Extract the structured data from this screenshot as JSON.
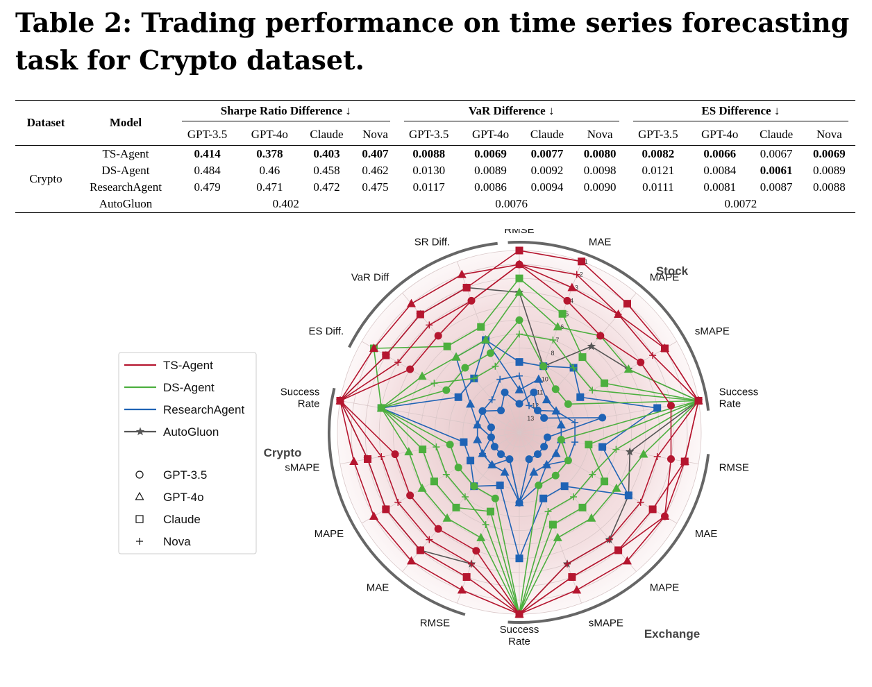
{
  "title": "Table 2: Trading performance on time series forecasting task for Crypto dataset.",
  "table": {
    "col_dataset": "Dataset",
    "col_model": "Model",
    "groups": [
      "Sharpe Ratio Difference ↓",
      "VaR Difference ↓",
      "ES Difference ↓"
    ],
    "llms": [
      "GPT-3.5",
      "GPT-4o",
      "Claude",
      "Nova"
    ],
    "dataset": "Crypto",
    "rows": [
      {
        "model": "TS-Agent",
        "values": [
          "0.414",
          "0.378",
          "0.403",
          "0.407",
          "0.0088",
          "0.0069",
          "0.0077",
          "0.0080",
          "0.0082",
          "0.0066",
          "0.0067",
          "0.0069"
        ],
        "bold": [
          true,
          true,
          true,
          true,
          true,
          true,
          true,
          true,
          true,
          true,
          false,
          true
        ]
      },
      {
        "model": "DS-Agent",
        "values": [
          "0.484",
          "0.46",
          "0.458",
          "0.462",
          "0.0130",
          "0.0089",
          "0.0092",
          "0.0098",
          "0.0121",
          "0.0084",
          "0.0061",
          "0.0089"
        ],
        "bold": [
          false,
          false,
          false,
          false,
          false,
          false,
          false,
          false,
          false,
          false,
          true,
          false
        ]
      },
      {
        "model": "ResearchAgent",
        "values": [
          "0.479",
          "0.471",
          "0.472",
          "0.475",
          "0.0117",
          "0.0086",
          "0.0094",
          "0.0090",
          "0.0111",
          "0.0081",
          "0.0087",
          "0.0088"
        ],
        "bold": [
          false,
          false,
          false,
          false,
          false,
          false,
          false,
          false,
          false,
          false,
          false,
          false
        ]
      }
    ],
    "autogluon": {
      "model": "AutoGluon",
      "values": [
        "0.402",
        "0.0076",
        "0.0072"
      ]
    }
  },
  "chart_data": {
    "type": "radar",
    "axes": [
      "RMSE",
      "MAE",
      "MAPE",
      "sMAPE",
      "Success Rate",
      "RMSE",
      "MAE",
      "MAPE",
      "sMAPE",
      "Success Rate",
      "RMSE",
      "MAE",
      "MAPE",
      "sMAPE",
      "Success Rate",
      "ES Diff.",
      "VaR Diff",
      "SR Diff."
    ],
    "axis_labels": [
      [
        "RMSE"
      ],
      [
        "MAE"
      ],
      [
        "MAPE"
      ],
      [
        "sMAPE"
      ],
      [
        "Success",
        "Rate"
      ],
      [
        "RMSE"
      ],
      [
        "MAE"
      ],
      [
        "MAPE"
      ],
      [
        "sMAPE"
      ],
      [
        "Success",
        "Rate"
      ],
      [
        "RMSE"
      ],
      [
        "MAE"
      ],
      [
        "MAPE"
      ],
      [
        "sMAPE"
      ],
      [
        "Success",
        "Rate"
      ],
      [
        "ES Diff."
      ],
      [
        "VaR Diff"
      ],
      [
        "SR Diff."
      ]
    ],
    "group_labels": [
      "Stock",
      "Exchange",
      "Crypto"
    ],
    "rank_ticks": [
      "1",
      "2",
      "3",
      "4",
      "5",
      "6",
      "7",
      "8",
      "9",
      "10",
      "11",
      "12",
      "13"
    ],
    "rank_range": [
      1,
      13
    ],
    "series": [
      {
        "name": "TS-Agent",
        "color": "#b5162f",
        "variants": [
          {
            "llm": "GPT-3.5",
            "ranks": [
              2,
              4,
              5,
              4,
              3,
              3,
              2,
              3,
              3,
              1,
              5,
              5,
              5,
              5,
              1,
              5,
              5,
              4
            ]
          },
          {
            "llm": "GPT-4o",
            "ranks": [
              2,
              3,
              3,
              2,
              1,
              2,
              2,
              2,
              2,
              1,
              2,
              2,
              2,
              2,
              1,
              2,
              2,
              2
            ]
          },
          {
            "llm": "Claude",
            "ranks": [
              1,
              1,
              2,
              2,
              1,
              2,
              3,
              3,
              3,
              1,
              3,
              3,
              3,
              3,
              1,
              3,
              3,
              3
            ]
          },
          {
            "llm": "Nova",
            "ranks": [
              2,
              2,
              3,
              3,
              1,
              4,
              4,
              4,
              4,
              1,
              4,
              4,
              4,
              4,
              1,
              4,
              4,
              4
            ]
          }
        ]
      },
      {
        "name": "DS-Agent",
        "color": "#4caf3e",
        "variants": [
          {
            "llm": "GPT-3.5",
            "ranks": [
              6,
              9,
              10,
              10,
              1,
              11,
              10,
              10,
              10,
              1,
              9,
              9,
              9,
              9,
              4,
              8,
              8,
              8
            ]
          },
          {
            "llm": "GPT-4o",
            "ranks": [
              4,
              6,
              5,
              5,
              1,
              5,
              6,
              6,
              6,
              1,
              6,
              6,
              6,
              6,
              4,
              6,
              7,
              7
            ]
          },
          {
            "llm": "Claude",
            "ranks": [
              3,
              5,
              7,
              7,
              1,
              9,
              7,
              7,
              7,
              1,
              8,
              7,
              7,
              7,
              4,
              2,
              6,
              6
            ]
          },
          {
            "llm": "Nova",
            "ranks": [
              7,
              7,
              8,
              8,
              1,
              7,
              8,
              8,
              8,
              1,
              7,
              8,
              8,
              8,
              4,
              7,
              9,
              9
            ]
          }
        ]
      },
      {
        "name": "ResearchAgent",
        "color": "#1f63b5",
        "variants": [
          {
            "llm": "GPT-3.5",
            "ranks": [
              12,
              11,
              12,
              12,
              8,
              12,
              12,
              12,
              12,
              9,
              12,
              12,
              12,
              12,
              12,
              11,
              12,
              11
            ]
          },
          {
            "llm": "GPT-4o",
            "ranks": [
              11,
              10,
              11,
              11,
              11,
              11,
              11,
              11,
              11,
              9,
              11,
              11,
              11,
              11,
              11,
              10,
              7,
              7
            ]
          },
          {
            "llm": "Claude",
            "ranks": [
              9,
              9,
              8,
              9,
              4,
              8,
              5,
              9,
              9,
              5,
              10,
              9,
              10,
              10,
              4,
              9,
              9,
              7
            ]
          },
          {
            "llm": "Nova",
            "ranks": [
              10,
              12,
              12,
              11,
              10,
              10,
              10,
              11,
              10,
              9,
              12,
              11,
              11,
              12,
              11,
              11,
              11,
              10
            ]
          }
        ]
      },
      {
        "name": "AutoGluon",
        "color": "#555555",
        "variants": [
          {
            "llm": "",
            "ranks": [
              4,
              9,
              6,
              5,
              1,
              6,
              5,
              4,
              4,
              1,
              4,
              3,
              3,
              3,
              1,
              3,
              3,
              3
            ]
          }
        ]
      }
    ],
    "legend_models": [
      "TS-Agent",
      "DS-Agent",
      "ResearchAgent",
      "AutoGluon"
    ],
    "legend_markers": [
      {
        "label": "GPT-3.5",
        "marker": "circle"
      },
      {
        "label": "GPT-4o",
        "marker": "triangle"
      },
      {
        "label": "Claude",
        "marker": "square"
      },
      {
        "label": "Nova",
        "marker": "plus"
      }
    ]
  }
}
